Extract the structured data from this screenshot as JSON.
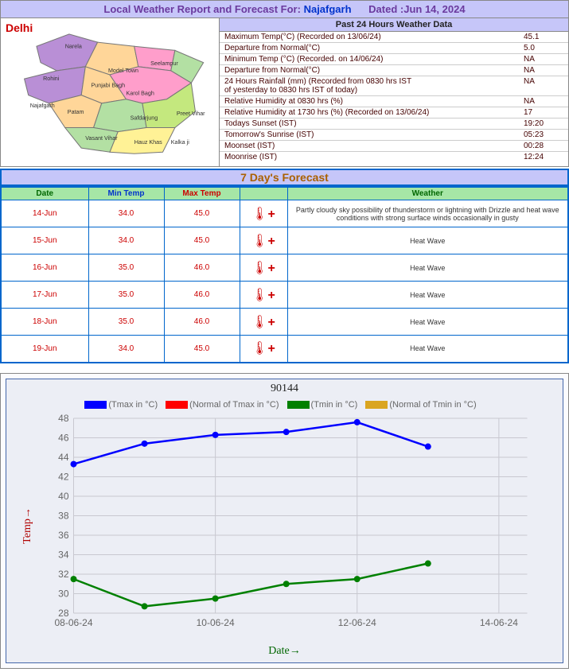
{
  "header": {
    "prefix": "Local Weather Report and Forecast For:",
    "location": "Najafgarh",
    "dated": "Dated :Jun 14, 2024"
  },
  "region_name": "Delhi",
  "past24": {
    "title": "Past 24 Hours Weather Data",
    "rows": [
      {
        "label": "Maximum Temp(°C) (Recorded on 13/06/24)",
        "value": "45.1"
      },
      {
        "label": "Departure from Normal(°C)",
        "value": "5.0"
      },
      {
        "label": "Minimum Temp (°C) (Recorded. on 14/06/24)",
        "value": "NA"
      },
      {
        "label": "Departure from Normal(°C)",
        "value": "NA"
      },
      {
        "label": "24 Hours Rainfall (mm) (Recorded from 0830 hrs IST\nof yesterday to 0830 hrs IST of today)",
        "value": "NA"
      },
      {
        "label": "Relative Humidity at 0830 hrs (%)",
        "value": "NA"
      },
      {
        "label": "Relative Humidity at 1730 hrs (%) (Recorded on 13/06/24)",
        "value": "17"
      },
      {
        "label": "Todays Sunset (IST)",
        "value": "19:20"
      },
      {
        "label": "Tomorrow's Sunrise (IST)",
        "value": "05:23"
      },
      {
        "label": "Moonset (IST)",
        "value": "00:28"
      },
      {
        "label": "Moonrise (IST)",
        "value": "12:24"
      }
    ]
  },
  "forecast": {
    "title": "7 Day's Forecast",
    "columns": {
      "date": "Date",
      "min": "Min Temp",
      "max": "Max Temp",
      "weather": "Weather"
    },
    "rows": [
      {
        "date": "14-Jun",
        "min": "34.0",
        "max": "45.0",
        "weather": "Partly cloudy sky possibility of thunderstorm or lightning with Drizzle and heat wave conditions with strong surface winds occasionally in gusty"
      },
      {
        "date": "15-Jun",
        "min": "34.0",
        "max": "45.0",
        "weather": "Heat Wave"
      },
      {
        "date": "16-Jun",
        "min": "35.0",
        "max": "46.0",
        "weather": "Heat Wave"
      },
      {
        "date": "17-Jun",
        "min": "35.0",
        "max": "46.0",
        "weather": "Heat Wave"
      },
      {
        "date": "18-Jun",
        "min": "35.0",
        "max": "46.0",
        "weather": "Heat Wave"
      },
      {
        "date": "19-Jun",
        "min": "34.0",
        "max": "45.0",
        "weather": "Heat Wave"
      }
    ]
  },
  "chart": {
    "title": "90144",
    "legend": [
      {
        "label": "(Tmax in °C)",
        "color": "#0000ff"
      },
      {
        "label": "(Normal of Tmax in °C)",
        "color": "#ff0000"
      },
      {
        "label": "(Tmin in °C)",
        "color": "#008000"
      },
      {
        "label": "(Normal of Tmin in °C)",
        "color": "#daa520"
      }
    ],
    "ylim": [
      28,
      48
    ],
    "ytick_step": 2,
    "xticks": [
      "08-06-24",
      "10-06-24",
      "12-06-24",
      "14-06-24"
    ],
    "x_dates": [
      "08-06-24",
      "09-06-24",
      "10-06-24",
      "11-06-24",
      "12-06-24",
      "13-06-24"
    ],
    "series": {
      "tmax": {
        "color": "#0000ff",
        "values": [
          43.3,
          45.4,
          46.3,
          46.6,
          47.6,
          45.1
        ]
      },
      "tmin": {
        "color": "#008000",
        "values": [
          31.5,
          28.7,
          29.5,
          31.0,
          31.5,
          33.1
        ]
      }
    },
    "grid_color": "#c8c8d0",
    "background_color": "#eceef5",
    "ylabel": "Temp",
    "xlabel": "Date",
    "label_fontsize": 14
  }
}
